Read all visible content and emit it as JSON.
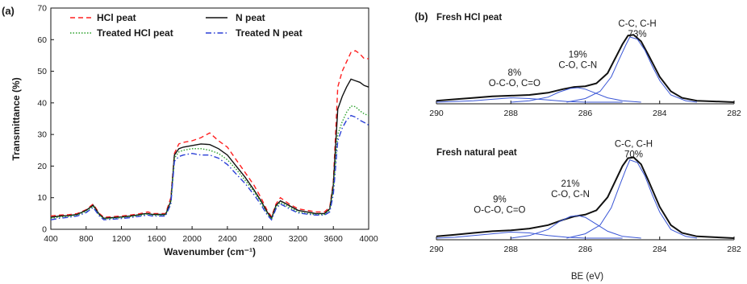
{
  "chart_data": [
    {
      "type": "line",
      "panel_label": "(a)",
      "xlabel": "Wavenumber (cm⁻¹)",
      "ylabel": "Transmittance (%)",
      "xlim": [
        400,
        4000
      ],
      "ylim": [
        0,
        70
      ],
      "x_ticks": [
        400,
        800,
        1200,
        1600,
        2000,
        2400,
        2800,
        3200,
        3600,
        4000
      ],
      "y_ticks": [
        0,
        10,
        20,
        30,
        40,
        50,
        60,
        70
      ],
      "legend_position": "top",
      "series": [
        {
          "name": "HCl peat",
          "color": "#ff2020",
          "dash": "dashed",
          "x": [
            400,
            500,
            600,
            700,
            800,
            880,
            950,
            1000,
            1100,
            1200,
            1300,
            1400,
            1450,
            1500,
            1550,
            1600,
            1700,
            1760,
            1800,
            1850,
            1900,
            2000,
            2100,
            2200,
            2300,
            2400,
            2500,
            2600,
            2700,
            2780,
            2850,
            2900,
            2950,
            3000,
            3050,
            3100,
            3200,
            3300,
            3400,
            3500,
            3560,
            3600,
            3650,
            3700,
            3750,
            3800,
            3850,
            3900,
            3950,
            4000
          ],
          "y": [
            4.2,
            4.5,
            4.6,
            5.0,
            6.2,
            8.0,
            5.0,
            3.8,
            4.0,
            4.2,
            4.5,
            4.9,
            5.2,
            5.5,
            5.0,
            5.0,
            5.0,
            10.0,
            24.0,
            27.0,
            27.5,
            28.0,
            29.0,
            30.5,
            28.0,
            26.0,
            22.0,
            18.0,
            14.0,
            10.0,
            6.0,
            4.0,
            8.0,
            10.0,
            9.0,
            8.0,
            6.5,
            6.0,
            5.5,
            5.5,
            7.0,
            15.0,
            45.0,
            50.0,
            53.0,
            56.0,
            56.5,
            55.5,
            54.0,
            54.0
          ]
        },
        {
          "name": "N peat",
          "color": "#111111",
          "dash": "solid",
          "x": [
            400,
            500,
            600,
            700,
            800,
            880,
            950,
            1000,
            1100,
            1200,
            1300,
            1400,
            1450,
            1500,
            1550,
            1600,
            1700,
            1760,
            1800,
            1850,
            1900,
            2000,
            2100,
            2200,
            2300,
            2400,
            2500,
            2600,
            2700,
            2780,
            2850,
            2900,
            2950,
            3000,
            3050,
            3100,
            3200,
            3300,
            3400,
            3500,
            3560,
            3600,
            3650,
            3700,
            3750,
            3800,
            3850,
            3900,
            3950,
            4000
          ],
          "y": [
            3.8,
            4.2,
            4.3,
            4.7,
            6.0,
            7.6,
            4.7,
            3.5,
            3.7,
            3.9,
            4.2,
            4.6,
            4.9,
            5.0,
            4.7,
            4.7,
            4.7,
            9.0,
            23.5,
            25.5,
            26.0,
            26.5,
            27.0,
            26.8,
            25.5,
            23.5,
            20.0,
            16.5,
            12.5,
            9.0,
            5.5,
            3.5,
            7.5,
            9.0,
            8.3,
            7.5,
            6.0,
            5.5,
            5.0,
            5.0,
            6.5,
            14.0,
            38.0,
            42.0,
            45.0,
            47.5,
            47.0,
            46.5,
            45.5,
            45.0
          ]
        },
        {
          "name": "Treated HCl peat",
          "color": "#2aa02a",
          "dash": "dotted",
          "x": [
            400,
            500,
            600,
            700,
            800,
            880,
            950,
            1000,
            1100,
            1200,
            1300,
            1400,
            1450,
            1500,
            1550,
            1600,
            1700,
            1760,
            1800,
            1850,
            1900,
            2000,
            2100,
            2200,
            2300,
            2400,
            2500,
            2600,
            2700,
            2780,
            2850,
            2900,
            2950,
            3000,
            3050,
            3100,
            3200,
            3300,
            3400,
            3500,
            3560,
            3600,
            3650,
            3700,
            3750,
            3800,
            3850,
            3900,
            3950,
            4000
          ],
          "y": [
            3.5,
            3.9,
            4.1,
            4.5,
            5.7,
            7.3,
            4.5,
            3.3,
            3.5,
            3.7,
            4.0,
            4.4,
            4.6,
            4.8,
            4.5,
            4.5,
            4.5,
            8.5,
            22.5,
            24.5,
            25.0,
            25.5,
            25.5,
            25.0,
            24.0,
            22.0,
            19.0,
            15.5,
            12.0,
            8.5,
            5.0,
            3.2,
            7.0,
            8.5,
            7.8,
            7.0,
            5.5,
            5.0,
            4.7,
            4.7,
            6.0,
            12.5,
            30.0,
            34.0,
            37.0,
            39.0,
            38.8,
            37.5,
            36.5,
            36.0
          ]
        },
        {
          "name": "Treated N peat",
          "color": "#2a3fd6",
          "dash": "dashdot",
          "x": [
            400,
            500,
            600,
            700,
            800,
            880,
            950,
            1000,
            1100,
            1200,
            1300,
            1400,
            1450,
            1500,
            1550,
            1600,
            1700,
            1760,
            1800,
            1850,
            1900,
            2000,
            2100,
            2200,
            2300,
            2400,
            2500,
            2600,
            2700,
            2780,
            2850,
            2900,
            2950,
            3000,
            3050,
            3100,
            3200,
            3300,
            3400,
            3500,
            3560,
            3600,
            3650,
            3700,
            3750,
            3800,
            3850,
            3900,
            3950,
            4000
          ],
          "y": [
            3.0,
            3.5,
            3.8,
            4.2,
            5.3,
            6.9,
            4.2,
            3.0,
            3.2,
            3.4,
            3.7,
            4.1,
            4.3,
            4.5,
            4.2,
            4.2,
            4.2,
            8.0,
            21.5,
            23.0,
            23.5,
            24.0,
            23.5,
            23.5,
            22.5,
            20.5,
            17.5,
            14.5,
            11.0,
            7.8,
            4.6,
            3.0,
            6.5,
            8.0,
            7.3,
            6.5,
            5.2,
            4.8,
            4.5,
            4.5,
            5.5,
            11.0,
            28.0,
            32.0,
            34.5,
            36.0,
            35.5,
            34.5,
            33.8,
            33.0
          ]
        }
      ]
    },
    {
      "type": "line",
      "panel_label": "(b)",
      "subtitle": "Fresh HCl peat",
      "xlabel": "",
      "reversed_x": true,
      "xlim": [
        290,
        282
      ],
      "x_ticks": [
        290,
        288,
        286,
        284,
        282
      ],
      "ylim": [
        0,
        1
      ],
      "annotations": [
        {
          "lines": [
            "8%",
            "O-C-O, C=O"
          ],
          "x": 287.9,
          "y": 0.22
        },
        {
          "lines": [
            "19%",
            "C-O, C-N"
          ],
          "x": 286.2,
          "y": 0.47
        },
        {
          "lines": [
            "C-C, C-H",
            "73%"
          ],
          "x": 284.6,
          "y": 0.9
        }
      ],
      "series": [
        {
          "name": "",
          "color": "#111111",
          "role": "envelope",
          "x": [
            290,
            289.5,
            289,
            288.5,
            288,
            287.5,
            287,
            286.6,
            286.3,
            286,
            285.7,
            285.4,
            285.2,
            285,
            284.85,
            284.7,
            284.5,
            284.3,
            284,
            283.7,
            283.4,
            283,
            282.5,
            282
          ],
          "y": [
            0.02,
            0.04,
            0.06,
            0.08,
            0.09,
            0.1,
            0.13,
            0.18,
            0.21,
            0.22,
            0.26,
            0.4,
            0.6,
            0.8,
            0.92,
            0.93,
            0.84,
            0.65,
            0.35,
            0.15,
            0.06,
            0.02,
            0.01,
            0.0
          ]
        },
        {
          "name": "",
          "color": "#3a56d6",
          "role": "component",
          "x": [
            290,
            289.5,
            289,
            288.5,
            288,
            287.5,
            287,
            286.5,
            286,
            285.5,
            285
          ],
          "y": [
            0.0,
            0.01,
            0.02,
            0.04,
            0.06,
            0.05,
            0.03,
            0.01,
            0.0,
            0.0,
            0.0
          ]
        },
        {
          "name": "",
          "color": "#3a56d6",
          "role": "component",
          "x": [
            288,
            287.5,
            287,
            286.7,
            286.4,
            286.2,
            286,
            285.7,
            285.4,
            285,
            284.5
          ],
          "y": [
            0.0,
            0.02,
            0.07,
            0.14,
            0.19,
            0.2,
            0.18,
            0.12,
            0.06,
            0.02,
            0.0
          ]
        },
        {
          "name": "",
          "color": "#3a56d6",
          "role": "component",
          "x": [
            286.5,
            286,
            285.6,
            285.3,
            285.1,
            284.9,
            284.8,
            284.6,
            284.4,
            284.2,
            284,
            283.7,
            283.3,
            283
          ],
          "y": [
            0.0,
            0.05,
            0.15,
            0.35,
            0.58,
            0.8,
            0.9,
            0.87,
            0.72,
            0.5,
            0.3,
            0.1,
            0.02,
            0.0
          ]
        }
      ]
    },
    {
      "type": "line",
      "panel_label": "",
      "subtitle": "Fresh natural peat",
      "xlabel": "BE (eV)",
      "reversed_x": true,
      "xlim": [
        290,
        282
      ],
      "x_ticks": [
        290,
        288,
        286,
        284,
        282
      ],
      "ylim": [
        0,
        1
      ],
      "annotations": [
        {
          "lines": [
            "9%",
            "O-C-O, C=O"
          ],
          "x": 288.3,
          "y": 0.29
        },
        {
          "lines": [
            "21%",
            "C-O, C-N"
          ],
          "x": 286.4,
          "y": 0.47
        },
        {
          "lines": [
            "C-C, C-H",
            "70%"
          ],
          "x": 284.7,
          "y": 0.93
        }
      ],
      "series": [
        {
          "name": "",
          "color": "#111111",
          "role": "envelope",
          "x": [
            290,
            289.5,
            289,
            288.5,
            288,
            287.5,
            287,
            286.6,
            286.3,
            286,
            285.7,
            285.4,
            285.2,
            285,
            284.85,
            284.7,
            284.5,
            284.3,
            284,
            283.7,
            283.4,
            283,
            282.5,
            282
          ],
          "y": [
            0.02,
            0.04,
            0.06,
            0.08,
            0.09,
            0.11,
            0.15,
            0.21,
            0.25,
            0.27,
            0.32,
            0.47,
            0.65,
            0.83,
            0.92,
            0.93,
            0.85,
            0.66,
            0.36,
            0.15,
            0.06,
            0.02,
            0.01,
            0.0
          ]
        },
        {
          "name": "",
          "color": "#3a56d6",
          "role": "component",
          "x": [
            290,
            289.5,
            289,
            288.5,
            288,
            287.5,
            287,
            286.5,
            286,
            285.5,
            285
          ],
          "y": [
            0.0,
            0.01,
            0.03,
            0.05,
            0.07,
            0.06,
            0.03,
            0.01,
            0.0,
            0.0,
            0.0
          ]
        },
        {
          "name": "",
          "color": "#3a56d6",
          "role": "component",
          "x": [
            288,
            287.5,
            287,
            286.7,
            286.4,
            286.2,
            286,
            285.7,
            285.4,
            285,
            284.5
          ],
          "y": [
            0.0,
            0.03,
            0.1,
            0.19,
            0.25,
            0.26,
            0.24,
            0.16,
            0.08,
            0.02,
            0.0
          ]
        },
        {
          "name": "",
          "color": "#3a56d6",
          "role": "component",
          "x": [
            286.5,
            286,
            285.6,
            285.3,
            285.1,
            284.9,
            284.8,
            284.6,
            284.4,
            284.2,
            284,
            283.7,
            283.3,
            283
          ],
          "y": [
            0.0,
            0.05,
            0.15,
            0.35,
            0.58,
            0.8,
            0.9,
            0.87,
            0.72,
            0.5,
            0.3,
            0.1,
            0.02,
            0.0
          ]
        }
      ]
    }
  ]
}
